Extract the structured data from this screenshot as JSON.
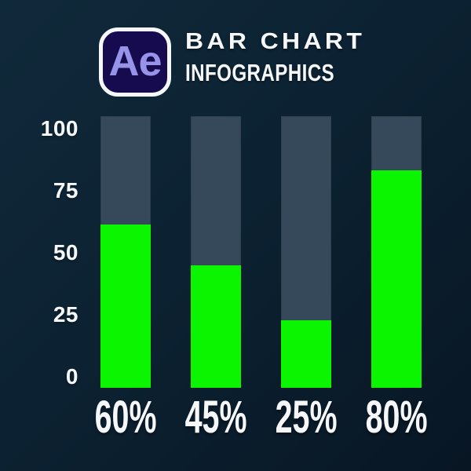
{
  "header": {
    "logo": {
      "text": "Ae",
      "background": "#170b50",
      "foreground": "#9693e8",
      "border": "#f5f7f9"
    },
    "title": "BAR CHART",
    "subtitle": "INFOGRAPHICS"
  },
  "colors": {
    "background_start": "#10293a",
    "background_end": "#081624",
    "bar_fill": "#0bf500",
    "bar_track": "#36495a",
    "text": "#f5f7f9"
  },
  "chart_data": {
    "type": "bar",
    "title": "BAR CHART",
    "subtitle": "INFOGRAPHICS",
    "categories": [
      "60%",
      "45%",
      "25%",
      "80%"
    ],
    "values": [
      60,
      45,
      25,
      80
    ],
    "ylim": [
      0,
      100
    ],
    "y_ticks": [
      "100",
      "75",
      "50",
      "25",
      "0"
    ],
    "grid": false,
    "legend": false,
    "bar_color": "#0bf500",
    "track_color": "#36495a"
  }
}
